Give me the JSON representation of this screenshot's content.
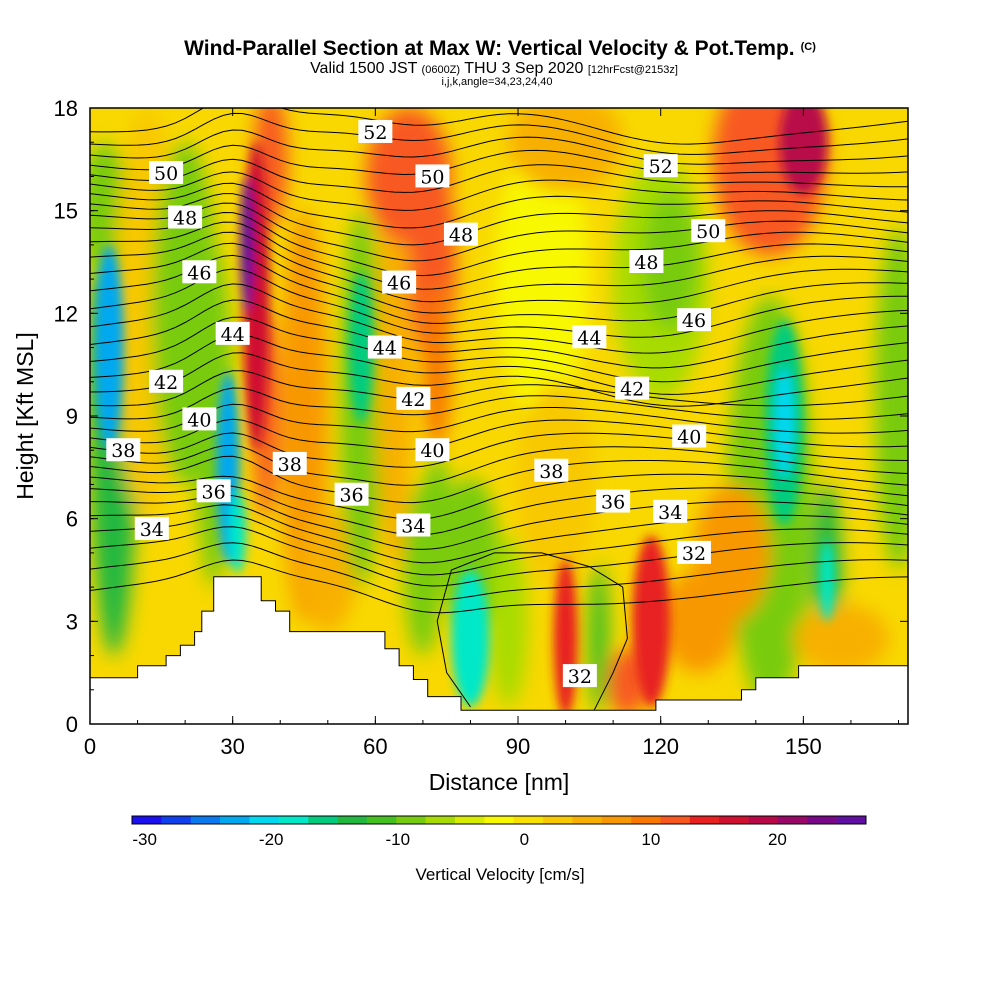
{
  "header": {
    "title": "Wind-Parallel Section at Max W: Vertical Velocity & Pot.Temp.",
    "copyright": "(C)",
    "valid_prefix": "Valid 1500 JST",
    "valid_z": "(0600Z)",
    "valid_date": "THU 3 Sep 2020",
    "fcst": "[12hrFcst@2153z]",
    "indices": "i,j,k,angle=34,23,24,40"
  },
  "colorbar": {
    "label": "Vertical Velocity [cm/s]",
    "tick_labels": [
      "-30",
      "-20",
      "-10",
      "0",
      "10",
      "20"
    ],
    "tick_values": [
      -30,
      -20,
      -10,
      0,
      10,
      20
    ],
    "vmin": -31,
    "vmax": 27,
    "colors": [
      "#1a10ee",
      "#0f40ee",
      "#0a78ee",
      "#00a8f0",
      "#00d8f0",
      "#00e8c8",
      "#00cc80",
      "#22b840",
      "#44c020",
      "#78cc10",
      "#a8dc00",
      "#d8ec00",
      "#f8f800",
      "#f8e000",
      "#f8c800",
      "#f8b000",
      "#f89800",
      "#f87800",
      "#f85820",
      "#e82020",
      "#d01030",
      "#b80848",
      "#980868",
      "#780888",
      "#6010a0"
    ]
  },
  "chart_data": {
    "type": "heatmap",
    "title": "Wind-Parallel Section at Max W: Vertical Velocity & Pot.Temp.",
    "xlabel": "Distance [nm]",
    "ylabel": "Height [Kft MSL]",
    "xlim": [
      0,
      172
    ],
    "ylim": [
      0,
      18
    ],
    "x_ticks": [
      0,
      30,
      60,
      90,
      120,
      150
    ],
    "y_ticks": [
      0,
      3,
      6,
      9,
      12,
      15,
      18
    ],
    "x_tick_labels": [
      "0",
      "30",
      "60",
      "90",
      "120",
      "150"
    ],
    "y_tick_labels": [
      "0",
      "3",
      "6",
      "9",
      "12",
      "15",
      "18"
    ],
    "fill_variable": "Vertical Velocity [cm/s]",
    "contour_variable": "Potential Temperature",
    "contour_labels": [
      {
        "text": "52",
        "x": 60,
        "y": 17.3
      },
      {
        "text": "52",
        "x": 120,
        "y": 16.3
      },
      {
        "text": "50",
        "x": 16,
        "y": 16.1
      },
      {
        "text": "50",
        "x": 72,
        "y": 16.0
      },
      {
        "text": "50",
        "x": 130,
        "y": 14.4
      },
      {
        "text": "48",
        "x": 20,
        "y": 14.8
      },
      {
        "text": "48",
        "x": 78,
        "y": 14.3
      },
      {
        "text": "48",
        "x": 117,
        "y": 13.5
      },
      {
        "text": "46",
        "x": 23,
        "y": 13.2
      },
      {
        "text": "46",
        "x": 65,
        "y": 12.9
      },
      {
        "text": "46",
        "x": 127,
        "y": 11.8
      },
      {
        "text": "44",
        "x": 30,
        "y": 11.4
      },
      {
        "text": "44",
        "x": 62,
        "y": 11.0
      },
      {
        "text": "44",
        "x": 105,
        "y": 11.3
      },
      {
        "text": "42",
        "x": 16,
        "y": 10.0
      },
      {
        "text": "42",
        "x": 68,
        "y": 9.5
      },
      {
        "text": "42",
        "x": 114,
        "y": 9.8
      },
      {
        "text": "40",
        "x": 23,
        "y": 8.9
      },
      {
        "text": "40",
        "x": 72,
        "y": 8.0
      },
      {
        "text": "40",
        "x": 126,
        "y": 8.4
      },
      {
        "text": "38",
        "x": 7,
        "y": 8.0
      },
      {
        "text": "38",
        "x": 42,
        "y": 7.6
      },
      {
        "text": "38",
        "x": 97,
        "y": 7.4
      },
      {
        "text": "36",
        "x": 26,
        "y": 6.8
      },
      {
        "text": "36",
        "x": 55,
        "y": 6.7
      },
      {
        "text": "36",
        "x": 110,
        "y": 6.5
      },
      {
        "text": "34",
        "x": 13,
        "y": 5.7
      },
      {
        "text": "34",
        "x": 68,
        "y": 5.8
      },
      {
        "text": "34",
        "x": 122,
        "y": 6.2
      },
      {
        "text": "32",
        "x": 127,
        "y": 5.0
      },
      {
        "text": "32",
        "x": 103,
        "y": 1.4
      }
    ],
    "terrain": [
      [
        0,
        1.35
      ],
      [
        10,
        1.35
      ],
      [
        10,
        1.7
      ],
      [
        16,
        1.7
      ],
      [
        16,
        2.0
      ],
      [
        19,
        2.0
      ],
      [
        19,
        2.3
      ],
      [
        22,
        2.3
      ],
      [
        22,
        2.7
      ],
      [
        23.5,
        2.7
      ],
      [
        23.5,
        3.3
      ],
      [
        26,
        3.3
      ],
      [
        26,
        4.3
      ],
      [
        36,
        4.3
      ],
      [
        36,
        3.6
      ],
      [
        39,
        3.6
      ],
      [
        39,
        3.3
      ],
      [
        42,
        3.3
      ],
      [
        42,
        2.7
      ],
      [
        62,
        2.7
      ],
      [
        62,
        2.2
      ],
      [
        65,
        2.2
      ],
      [
        65,
        1.7
      ],
      [
        68,
        1.7
      ],
      [
        68,
        1.3
      ],
      [
        71,
        1.3
      ],
      [
        71,
        0.8
      ],
      [
        78,
        0.8
      ],
      [
        78,
        0.4
      ],
      [
        119,
        0.4
      ],
      [
        119,
        0.7
      ],
      [
        137,
        0.7
      ],
      [
        137,
        1.0
      ],
      [
        140,
        1.0
      ],
      [
        140,
        1.35
      ],
      [
        149,
        1.35
      ],
      [
        149,
        1.7
      ],
      [
        172,
        1.7
      ]
    ]
  }
}
